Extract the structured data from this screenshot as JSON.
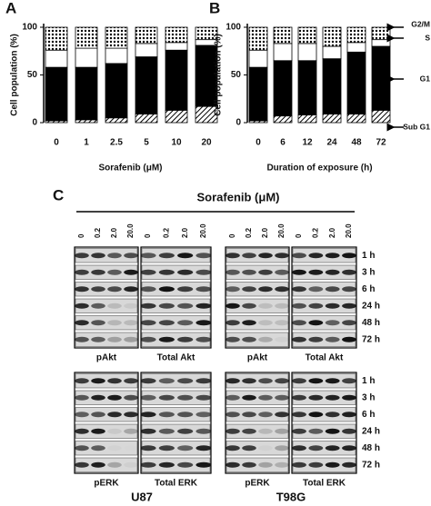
{
  "chart_data": [
    {
      "type": "bar",
      "stacked": true,
      "panel": "A",
      "categories": [
        "0",
        "1",
        "2.5",
        "5",
        "10",
        "20"
      ],
      "xlabel": "Sorafenib (μM)",
      "ylabel": "Cell population (%)",
      "ylim": [
        0,
        100
      ],
      "yticks": [
        0,
        50,
        100
      ],
      "series": [
        {
          "color": "#000000",
          "pattern": "hatch",
          "values": [
            2,
            3,
            5,
            9,
            13,
            17
          ]
        },
        {
          "color": "#000000",
          "values": [
            56,
            55,
            57,
            60,
            63,
            64
          ]
        },
        {
          "color": "#ffffff",
          "values": [
            18,
            20,
            16,
            14,
            8,
            6
          ]
        },
        {
          "color": "#000000",
          "pattern": "dots",
          "values": [
            24,
            22,
            22,
            17,
            16,
            13
          ]
        }
      ]
    },
    {
      "type": "bar",
      "stacked": true,
      "panel": "B",
      "categories": [
        "0",
        "6",
        "12",
        "24",
        "48",
        "72"
      ],
      "xlabel": "Duration of exposure (h)",
      "ylabel": "Cell population (%)",
      "ylim": [
        0,
        100
      ],
      "yticks": [
        0,
        50,
        100
      ],
      "series": [
        {
          "name": "Sub G1",
          "color": "#000000",
          "pattern": "hatch",
          "values": [
            2,
            7,
            8,
            9,
            9,
            13
          ]
        },
        {
          "name": "G1",
          "color": "#000000",
          "values": [
            56,
            58,
            57,
            58,
            65,
            67
          ]
        },
        {
          "name": "S",
          "color": "#ffffff",
          "values": [
            18,
            18,
            18,
            13,
            10,
            7
          ]
        },
        {
          "name": "G2/M",
          "color": "#000000",
          "pattern": "dots",
          "values": [
            24,
            17,
            17,
            20,
            16,
            13
          ]
        }
      ]
    }
  ],
  "panel_c": {
    "label": "C",
    "title": "Sorafenib (μM)",
    "concentrations": [
      "0",
      "0.2",
      "2.0",
      "20.0"
    ],
    "times": [
      "1 h",
      "3 h",
      "6 h",
      "24 h",
      "48 h",
      "72 h"
    ],
    "blots": [
      [
        "pAkt",
        "Total Akt",
        "pAkt",
        "Total Akt"
      ],
      [
        "pERK",
        "Total ERK",
        "pERK",
        "Total ERK"
      ]
    ],
    "cell_lines": [
      "U87",
      "T98G"
    ]
  }
}
